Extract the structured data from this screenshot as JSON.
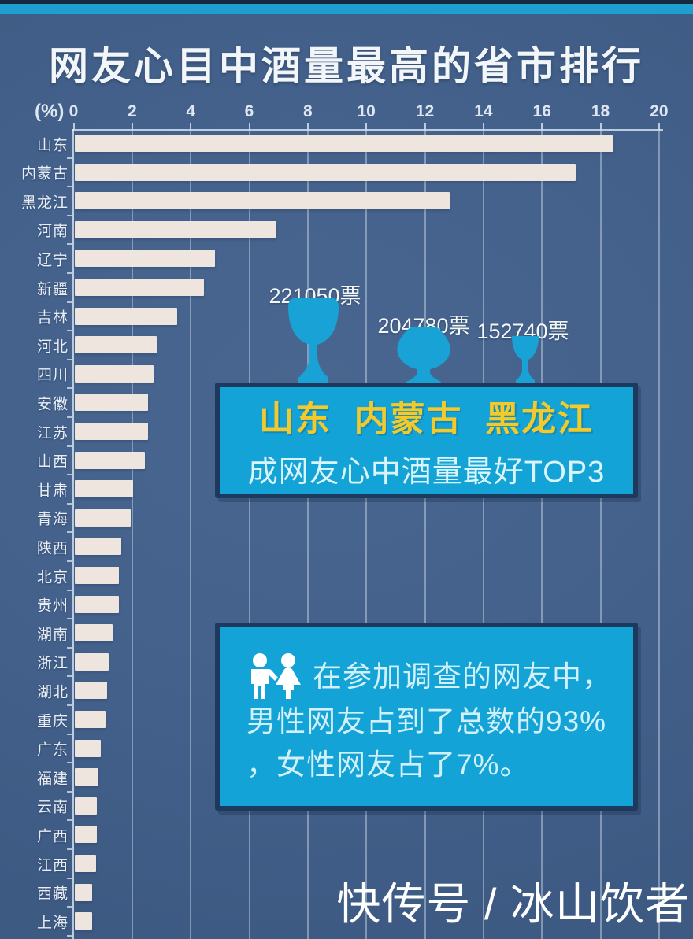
{
  "title": "网友心目中酒量最高的省市排行",
  "axis": {
    "unit_label": "(%)",
    "ticks": [
      0,
      2,
      4,
      6,
      8,
      10,
      12,
      14,
      16,
      18,
      20
    ],
    "max": 20
  },
  "chart_data": {
    "type": "bar",
    "orientation": "horizontal",
    "title": "网友心目中酒量最高的省市排行",
    "xlabel": "(%)",
    "xlim": [
      0,
      20
    ],
    "grid": true,
    "categories": [
      "山东",
      "内蒙古",
      "黑龙江",
      "河南",
      "辽宁",
      "新疆",
      "吉林",
      "河北",
      "四川",
      "安徽",
      "江苏",
      "山西",
      "甘肃",
      "青海",
      "陕西",
      "北京",
      "贵州",
      "湖南",
      "浙江",
      "湖北",
      "重庆",
      "广东",
      "福建",
      "云南",
      "广西",
      "江西",
      "西藏",
      "上海"
    ],
    "values": [
      18.4,
      17.1,
      12.8,
      6.9,
      4.8,
      4.4,
      3.5,
      2.8,
      2.7,
      2.5,
      2.5,
      2.4,
      2.0,
      1.9,
      1.6,
      1.5,
      1.5,
      1.3,
      1.15,
      1.1,
      1.05,
      0.9,
      0.8,
      0.75,
      0.75,
      0.72,
      0.6,
      0.58
    ],
    "annotations": [
      {
        "label": "221050票",
        "province": "山东"
      },
      {
        "label": "204780票",
        "province": "内蒙古"
      },
      {
        "label": "152740票",
        "province": "黑龙江"
      }
    ]
  },
  "top3_box": {
    "provinces_line": "山东  内蒙古  黑龙江",
    "subtitle": "成网友心中酒量最好TOP3"
  },
  "survey_box": {
    "line1": "在参加调查的网友中，",
    "line2": "男性网友占到了总数的93%",
    "line3": "，女性网友占了7%。"
  },
  "watermark": "快传号 / 冰山饮者",
  "colors": {
    "background": "#42608b",
    "top_strip": "#1f9ed2",
    "bar": "#eee5de",
    "grid": "#d5e3f0",
    "box_bg": "#13a3d6",
    "box_border": "#1d3a5e",
    "highlight_yellow": "#f3ca2a",
    "box_text": "#d9f4fc",
    "glass": "#18a2d5",
    "title_text": "#f3f6f9",
    "watermark": "#ffffff"
  }
}
